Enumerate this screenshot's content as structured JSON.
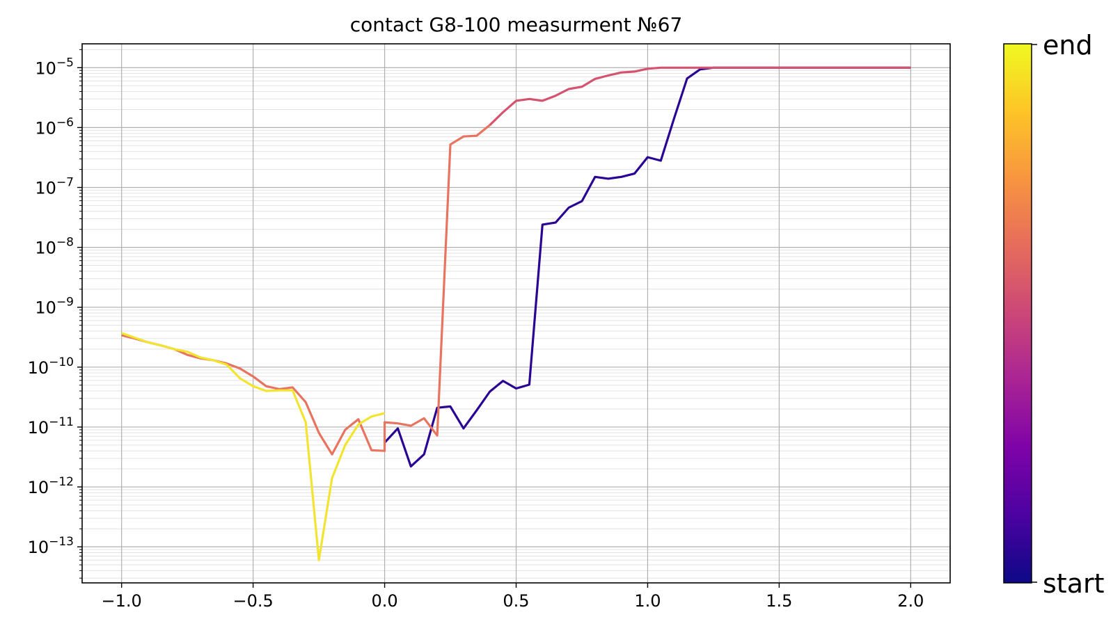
{
  "chart_data": {
    "type": "line",
    "title": "contact G8-100 measurment №67",
    "xlabel": "",
    "ylabel": "",
    "xlim": [
      -1.15,
      2.15
    ],
    "ylim": [
      2.5e-14,
      2.5e-05
    ],
    "yscale": "log",
    "grid": "on",
    "x_ticks": [
      -1.0,
      -0.5,
      0.0,
      0.5,
      1.0,
      1.5,
      2.0
    ],
    "x_tick_labels": [
      "−1.0",
      "−0.5",
      "0.0",
      "0.5",
      "1.0",
      "1.5",
      "2.0"
    ],
    "y_tick_exponents": [
      -5,
      -6,
      -7,
      -8,
      -9,
      -10,
      -11,
      -12,
      -13
    ],
    "y_tick_base": "10",
    "colorbar": {
      "colormap": "plasma",
      "top_label": "end",
      "bottom_label": "start"
    },
    "colors": {
      "sweep1": "#2a0593",
      "sweep2": "#d5536f",
      "sweep3": "#e8735f",
      "sweep4": "#f2e430"
    },
    "series": [
      {
        "x": [
          0.0,
          0.05,
          0.1,
          0.15,
          0.2,
          0.25,
          0.3,
          0.35,
          0.4,
          0.45,
          0.5,
          0.55,
          0.6,
          0.65,
          0.7,
          0.75,
          0.8,
          0.85,
          0.9,
          0.95,
          1.0,
          1.05,
          1.1,
          1.15,
          1.2,
          1.25,
          1.3,
          1.35,
          1.4,
          1.45,
          1.5,
          1.55,
          1.6,
          1.65,
          1.7,
          1.75,
          1.8,
          1.85,
          1.9,
          1.95,
          2.0
        ],
        "y": [
          5.5e-12,
          9.5e-12,
          2.2e-12,
          3.5e-12,
          2.1e-11,
          2.2e-11,
          9.5e-12,
          1.9e-11,
          3.9e-11,
          5.9e-11,
          4.4e-11,
          5.1e-11,
          2.4e-08,
          2.6e-08,
          4.6e-08,
          5.9e-08,
          1.5e-07,
          1.4e-07,
          1.5e-07,
          1.7e-07,
          3.2e-07,
          2.8e-07,
          1.4e-06,
          6.6e-06,
          9.4e-06,
          1e-05,
          1e-05,
          1e-05,
          1e-05,
          1e-05,
          1e-05,
          1e-05,
          1e-05,
          1e-05,
          1e-05,
          1e-05,
          1e-05,
          1e-05,
          1e-05,
          1e-05,
          1e-05
        ]
      },
      {
        "x": [
          2.0,
          1.95,
          1.9,
          1.85,
          1.8,
          1.75,
          1.7,
          1.65,
          1.6,
          1.55,
          1.5,
          1.45,
          1.4,
          1.35,
          1.3,
          1.25,
          1.2,
          1.15,
          1.1,
          1.05,
          1.0,
          0.95,
          0.9,
          0.85,
          0.8,
          0.75,
          0.7,
          0.65,
          0.6,
          0.55,
          0.5,
          0.45,
          0.4
        ],
        "y": [
          1e-05,
          1e-05,
          1e-05,
          1e-05,
          1e-05,
          1e-05,
          1e-05,
          1e-05,
          1e-05,
          1e-05,
          1e-05,
          1e-05,
          1e-05,
          1e-05,
          1e-05,
          1e-05,
          1e-05,
          1e-05,
          1e-05,
          1e-05,
          9.6e-06,
          8.6e-06,
          8.3e-06,
          7.4e-06,
          6.5e-06,
          4.8e-06,
          4.4e-06,
          3.4e-06,
          2.8e-06,
          3e-06,
          2.8e-06,
          1.8e-06,
          1.1e-06
        ]
      },
      {
        "x": [
          0.4,
          0.35,
          0.3,
          0.25,
          0.2,
          0.15,
          0.1,
          0.05,
          0.0,
          0.0,
          -0.05,
          -0.1,
          -0.15,
          -0.2,
          -0.25,
          -0.3,
          -0.35,
          -0.4,
          -0.45,
          -0.5,
          -0.55,
          -0.6,
          -0.65,
          -0.7,
          -0.75,
          -0.8,
          -0.85,
          -0.9,
          -0.95,
          -1.0
        ],
        "y": [
          1.1e-06,
          7.3e-07,
          7.1e-07,
          5.2e-07,
          7.2e-12,
          1.4e-11,
          1.05e-11,
          1.15e-11,
          1.2e-11,
          4e-12,
          4.1e-12,
          1.35e-11,
          9e-12,
          3.5e-12,
          8e-12,
          2.6e-11,
          4.6e-11,
          4.3e-11,
          4.8e-11,
          7e-11,
          9.5e-11,
          1.15e-10,
          1.3e-10,
          1.4e-10,
          1.6e-10,
          2e-10,
          2.3e-10,
          2.6e-10,
          3e-10,
          3.4e-10
        ]
      },
      {
        "x": [
          -1.0,
          -0.95,
          -0.9,
          -0.85,
          -0.8,
          -0.75,
          -0.7,
          -0.65,
          -0.6,
          -0.55,
          -0.5,
          -0.45,
          -0.4,
          -0.35,
          -0.3,
          -0.25,
          -0.2,
          -0.15,
          -0.1,
          -0.05,
          0.0
        ],
        "y": [
          3.7e-10,
          3.1e-10,
          2.6e-10,
          2.3e-10,
          2e-10,
          1.8e-10,
          1.45e-10,
          1.3e-10,
          1.1e-10,
          6.5e-11,
          4.8e-11,
          4e-11,
          4.1e-11,
          4.1e-11,
          1.2e-11,
          6e-14,
          1.4e-12,
          5e-12,
          1.1e-11,
          1.5e-11,
          1.7e-11
        ]
      }
    ]
  }
}
